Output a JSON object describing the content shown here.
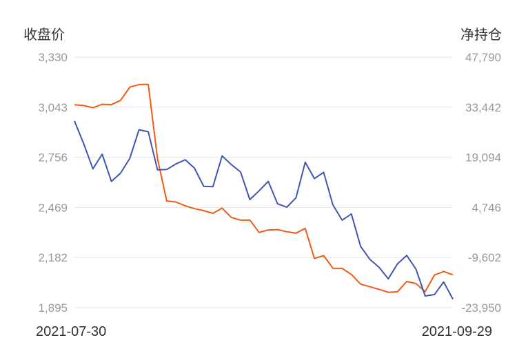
{
  "chart_data": {
    "type": "line",
    "left_axis_title": "收盘价",
    "right_axis_title": "净持仓",
    "left_ticks": [
      "3,330",
      "3,043",
      "2,756",
      "2,469",
      "2,182",
      "1,895"
    ],
    "right_ticks": [
      "47,790",
      "33,442",
      "19,094",
      "4,746",
      "-9,602",
      "-23,950"
    ],
    "left_range": [
      1895,
      3330
    ],
    "right_range": [
      -23950,
      47790
    ],
    "x_start_label": "2021-07-30",
    "x_end_label": "2021-09-29",
    "grid": true,
    "series": [
      {
        "axis": "left",
        "color": "#f25a13",
        "values": [
          3057,
          3053,
          3040,
          3060,
          3058,
          3083,
          3158,
          3173,
          3173,
          2748,
          2506,
          2500,
          2478,
          2462,
          2451,
          2435,
          2465,
          2412,
          2396,
          2397,
          2326,
          2340,
          2342,
          2330,
          2322,
          2349,
          2177,
          2193,
          2121,
          2120,
          2085,
          2030,
          2015,
          2000,
          1983,
          1986,
          2045,
          2033,
          1987,
          2082,
          2102,
          2083
        ]
      },
      {
        "axis": "right",
        "color": "#3f55b5",
        "values": [
          29500,
          23000,
          15800,
          20000,
          12200,
          14600,
          18800,
          27000,
          26400,
          15500,
          15600,
          17200,
          18400,
          16000,
          10800,
          10700,
          19500,
          17000,
          14900,
          7000,
          9500,
          12200,
          5800,
          4800,
          7500,
          17700,
          13000,
          14800,
          5500,
          1100,
          2900,
          -6400,
          -10100,
          -12400,
          -15700,
          -11400,
          -9000,
          -12900,
          -20600,
          -20200,
          -16600,
          -21500
        ]
      }
    ]
  }
}
